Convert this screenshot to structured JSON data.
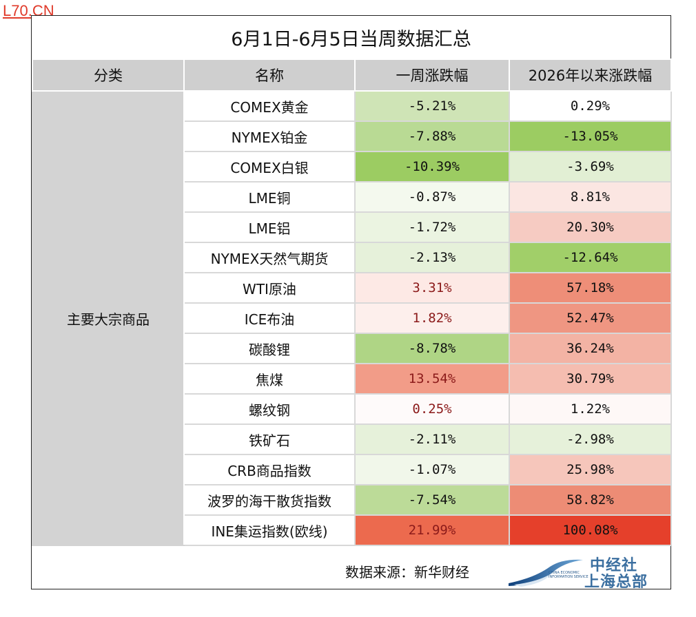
{
  "watermark": "L70.CN",
  "title": "6月1日-6月5日当周数据汇总",
  "headers": [
    "分类",
    "名称",
    "一周涨跌幅",
    "2026年以来涨跌幅"
  ],
  "category": "主要大宗商品",
  "rows": [
    {
      "name": "COMEX黄金",
      "week": "-5.21%",
      "ytd": "0.29%",
      "week_bg": "#cfe4b6",
      "ytd_bg": "#ffffff",
      "week_pos": false
    },
    {
      "name": "NYMEX铂金",
      "week": "-7.88%",
      "ytd": "-13.05%",
      "week_bg": "#b9da94",
      "ytd_bg": "#9ccc62",
      "week_pos": false
    },
    {
      "name": "COMEX白银",
      "week": "-10.39%",
      "ytd": "-3.69%",
      "week_bg": "#9ccc62",
      "ytd_bg": "#e2efd4",
      "week_pos": false
    },
    {
      "name": "LME铜",
      "week": "-0.87%",
      "ytd": "8.81%",
      "week_bg": "#f4f9ee",
      "ytd_bg": "#fbe6e2",
      "week_pos": false
    },
    {
      "name": "LME铝",
      "week": "-1.72%",
      "ytd": "20.30%",
      "week_bg": "#ebf4e1",
      "ytd_bg": "#f6cbc2",
      "week_pos": false
    },
    {
      "name": "NYMEX天然气期货",
      "week": "-2.13%",
      "ytd": "-12.64%",
      "week_bg": "#e6f1da",
      "ytd_bg": "#a1cf69",
      "week_pos": false
    },
    {
      "name": "WTI原油",
      "week": "3.31%",
      "ytd": "57.18%",
      "week_bg": "#fde9e5",
      "ytd_bg": "#ee8e78",
      "week_pos": true
    },
    {
      "name": "ICE布油",
      "week": "1.82%",
      "ytd": "52.47%",
      "week_bg": "#fdefec",
      "ytd_bg": "#ef9682",
      "week_pos": true
    },
    {
      "name": "碳酸锂",
      "week": "-8.78%",
      "ytd": "36.24%",
      "week_bg": "#afd585",
      "ytd_bg": "#f3b3a4",
      "week_pos": false
    },
    {
      "name": "焦煤",
      "week": "13.54%",
      "ytd": "30.79%",
      "week_bg": "#f29c88",
      "ytd_bg": "#f5bdb0",
      "week_pos": true
    },
    {
      "name": "螺纹钢",
      "week": "0.25%",
      "ytd": "1.22%",
      "week_bg": "#fefafa",
      "ytd_bg": "#fef8f7",
      "week_pos": true
    },
    {
      "name": "铁矿石",
      "week": "-2.11%",
      "ytd": "-2.98%",
      "week_bg": "#e6f1da",
      "ytd_bg": "#e6f1da",
      "week_pos": false
    },
    {
      "name": "CRB商品指数",
      "week": "-1.07%",
      "ytd": "25.98%",
      "week_bg": "#f1f7ea",
      "ytd_bg": "#f6c6bb",
      "week_pos": false
    },
    {
      "name": "波罗的海干散货指数",
      "week": "-7.54%",
      "ytd": "58.82%",
      "week_bg": "#bcdb98",
      "ytd_bg": "#ed8c75",
      "week_pos": false
    },
    {
      "name": "INE集运指数(欧线)",
      "week": "21.99%",
      "ytd": "100.08%",
      "week_bg": "#ec6a4e",
      "ytd_bg": "#e5402b",
      "week_pos": true
    }
  ],
  "footer": {
    "source": "数据来源：新华财经",
    "logo_cn_line1": "中经社",
    "logo_cn_line2": "上海总部",
    "logo_en_line1": "CHINA ECONOMIC",
    "logo_en_line2": "INFORMATION SERVICE"
  }
}
